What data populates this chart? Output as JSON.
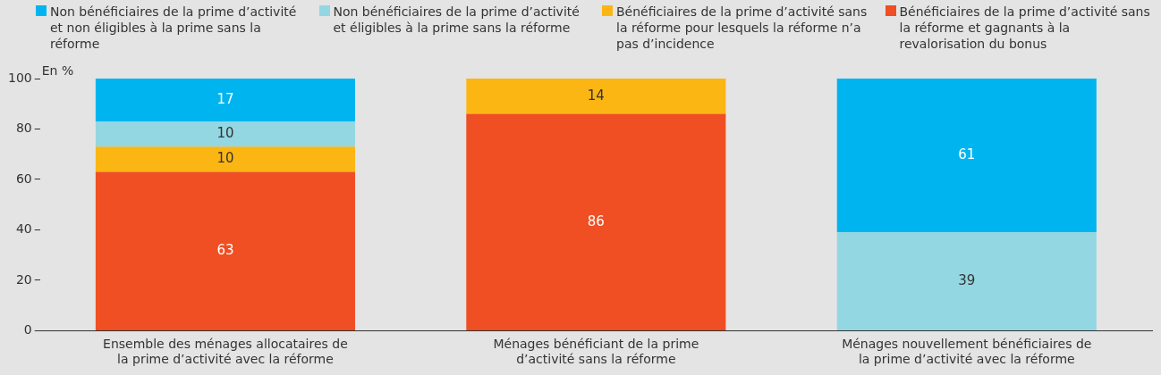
{
  "chart_data": {
    "type": "bar",
    "stacked": true,
    "ylabel": "En %",
    "categories": [
      "Ensemble des ménages allocataires de la prime d’activité avec la réforme",
      "Ménages bénéficiant de la prime d’activité sans la réforme",
      "Ménages nouvellement bénéficiaires de la prime d’activité avec la réforme"
    ],
    "series": [
      {
        "name": "Bénéficiaires de la prime d’activité sans la réforme et gagnants à la revalorisation du bonus",
        "color": "#f04e23",
        "values": [
          63,
          86,
          null
        ]
      },
      {
        "name": "Bénéficiaires de la prime d’activité sans la réforme pour lesquels la réforme n’a pas d’incidence",
        "color": "#fbb614",
        "values": [
          10,
          14,
          null
        ]
      },
      {
        "name": "Non bénéficiaires de la prime d’activité et éligibles à la prime sans la réforme",
        "color": "#93d7e3",
        "values": [
          10,
          null,
          39
        ]
      },
      {
        "name": "Non bénéficiaires de la prime d’activité et non éligibles à la prime sans la réforme",
        "color": "#00b5ef",
        "values": [
          17,
          null,
          61
        ]
      }
    ],
    "ylim": [
      0,
      100
    ],
    "yticks": [
      0,
      20,
      40,
      60,
      80,
      100
    ],
    "grid": false,
    "legend": "top",
    "data_labels": true
  }
}
